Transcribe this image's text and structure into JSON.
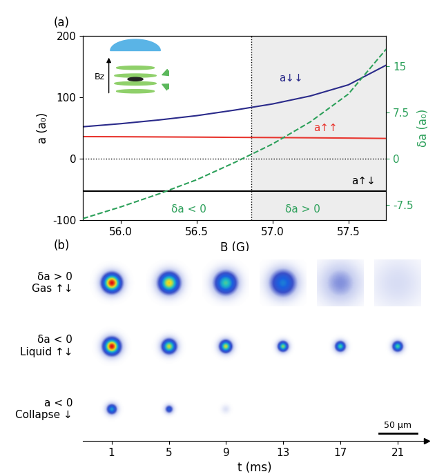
{
  "chart_data": [
    {
      "type": "line",
      "label": "(a)",
      "x_label": "B (G)",
      "y_label": "a (a₀)",
      "y2_label": "δa (a₀)",
      "x": [
        55.75,
        56.0,
        56.25,
        56.5,
        56.75,
        57.0,
        57.25,
        57.5,
        57.75
      ],
      "series": [
        {
          "name": "a↓↓",
          "color": "#2a2a8a",
          "line_style": "solid",
          "values": [
            52,
            57,
            63,
            70,
            79,
            89,
            102,
            120,
            152
          ]
        },
        {
          "name": "a↑↑",
          "color": "#e8352e",
          "line_style": "solid",
          "values": [
            36,
            35.8,
            35.5,
            35.2,
            34.8,
            34.5,
            34.1,
            33.6,
            33
          ]
        },
        {
          "name": "a↑↓",
          "color": "#000000",
          "line_style": "solid",
          "values": [
            -53,
            -53,
            -53,
            -53,
            -53,
            -53,
            -53,
            -53,
            -53
          ]
        },
        {
          "color": "#2ca05a",
          "line_style": "dashed",
          "axis": "y2",
          "values": [
            -9.7,
            -7.8,
            -5.7,
            -3.4,
            -0.6,
            2.4,
            6.0,
            10.5,
            17.8
          ]
        }
      ],
      "xlim": [
        55.75,
        57.75
      ],
      "xticks": [
        56.0,
        56.5,
        57.0,
        57.5
      ],
      "ylim": [
        -100,
        200
      ],
      "yticks": [
        -100,
        0,
        100,
        200
      ],
      "y2lim": [
        -10,
        20
      ],
      "y2ticks": [
        -7.5,
        0,
        7.5,
        15
      ],
      "threshold_B": 56.86,
      "zero_line": 0,
      "region_labels": [
        "δa < 0",
        "δa > 0"
      ],
      "inset_label": "Bz"
    },
    {
      "type": "image_grid",
      "label": "(b)",
      "x_label": "t (ms)",
      "xlim": [
        -1,
        23
      ],
      "xticks": [
        1,
        5,
        9,
        13,
        17,
        21
      ],
      "rows": [
        {
          "label": "δa > 0\nGas ↑↓",
          "peak": [
            1.0,
            0.85,
            0.7,
            0.55,
            0.25,
            0.12
          ],
          "size_um": [
            9,
            10,
            11,
            13,
            20,
            26
          ]
        },
        {
          "label": "δa < 0\nLiquid ↑↓",
          "peak": [
            1.0,
            0.8,
            0.8,
            0.75,
            0.7,
            0.7
          ],
          "size_um": [
            8,
            7,
            6,
            5,
            5,
            5
          ]
        },
        {
          "label": "a < 0\nCollapse ↓",
          "peak": [
            0.6,
            0.45,
            0.1,
            0,
            0,
            0
          ],
          "size_um": [
            5,
            4,
            4,
            0,
            0,
            0
          ]
        }
      ],
      "scale_bar": {
        "label": "50 μm",
        "length_um": 50
      }
    }
  ]
}
